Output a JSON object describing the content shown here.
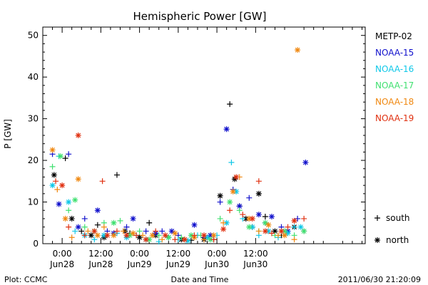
{
  "chart_data": {
    "type": "scatter",
    "title": "Hemispheric Power [GW]",
    "xlabel": "Date and Time",
    "ylabel": "P [GW]",
    "ylim": [
      0,
      52
    ],
    "xlim": [
      -6,
      94
    ],
    "x_unit": "hours from 2011-06-28 00:00 UT",
    "yticks": [
      0,
      10,
      20,
      30,
      40,
      50
    ],
    "xticks": [
      {
        "x": 0,
        "time": "0:00",
        "date": "Jun28"
      },
      {
        "x": 12,
        "time": "12:00",
        "date": "Jun28"
      },
      {
        "x": 24,
        "time": "0:00",
        "date": "Jun29"
      },
      {
        "x": 36,
        "time": "12:00",
        "date": "Jun29"
      },
      {
        "x": 48,
        "time": "0:00",
        "date": "Jun30"
      },
      {
        "x": 60,
        "time": "12:00",
        "date": "Jun30"
      }
    ],
    "legend_position": "right",
    "series": [
      {
        "name": "METP-02",
        "color": "#000000",
        "values": [
          [
            -2.5,
            16.5
          ],
          [
            1,
            20.5
          ],
          [
            3,
            6
          ],
          [
            6,
            3
          ],
          [
            9,
            2
          ],
          [
            11,
            4.5
          ],
          [
            13,
            1.5
          ],
          [
            17,
            16.5
          ],
          [
            19.5,
            3
          ],
          [
            21,
            2.5
          ],
          [
            24,
            1.5
          ],
          [
            27,
            5
          ],
          [
            29,
            2
          ],
          [
            33,
            1.5
          ],
          [
            37,
            1
          ],
          [
            40,
            0.8
          ],
          [
            44,
            1
          ],
          [
            47,
            1
          ],
          [
            49,
            11.5
          ],
          [
            52,
            33.5
          ],
          [
            53.5,
            15.5
          ],
          [
            55,
            9
          ],
          [
            57,
            6
          ],
          [
            59,
            4
          ],
          [
            61,
            12
          ],
          [
            63,
            6.5
          ],
          [
            66,
            3
          ],
          [
            68,
            2
          ],
          [
            72,
            4
          ],
          [
            75,
            3
          ]
        ]
      },
      {
        "name": "NOAA-15",
        "color": "#1010cc",
        "values": [
          [
            -3,
            21.5
          ],
          [
            -1,
            9.5
          ],
          [
            2,
            21.5
          ],
          [
            5,
            4
          ],
          [
            7,
            6
          ],
          [
            11,
            8
          ],
          [
            14,
            3
          ],
          [
            16,
            2.5
          ],
          [
            20,
            4
          ],
          [
            22,
            6
          ],
          [
            26,
            3
          ],
          [
            29,
            2.5
          ],
          [
            31,
            3
          ],
          [
            34,
            3
          ],
          [
            36,
            2
          ],
          [
            41,
            4.5
          ],
          [
            44,
            1.5
          ],
          [
            46,
            2
          ],
          [
            49,
            10
          ],
          [
            51,
            27.5
          ],
          [
            53,
            13
          ],
          [
            55,
            9
          ],
          [
            58,
            11
          ],
          [
            61,
            7
          ],
          [
            63,
            5
          ],
          [
            65,
            6.5
          ],
          [
            68,
            4
          ],
          [
            70,
            3
          ],
          [
            73,
            6
          ],
          [
            75.5,
            19.5
          ]
        ]
      },
      {
        "name": "NOAA-16",
        "color": "#10c8e8",
        "values": [
          [
            -3,
            14
          ],
          [
            -1,
            21
          ],
          [
            2,
            10
          ],
          [
            4,
            3
          ],
          [
            7,
            2
          ],
          [
            10,
            1
          ],
          [
            13,
            2
          ],
          [
            17,
            2.5
          ],
          [
            20,
            1.5
          ],
          [
            23,
            2
          ],
          [
            26,
            1
          ],
          [
            30,
            0.5
          ],
          [
            33,
            1.5
          ],
          [
            36,
            1
          ],
          [
            39,
            0.7
          ],
          [
            42,
            2
          ],
          [
            45,
            1.5
          ],
          [
            48,
            2
          ],
          [
            51,
            5
          ],
          [
            52.5,
            19.5
          ],
          [
            54,
            12.5
          ],
          [
            56,
            6
          ],
          [
            59,
            4
          ],
          [
            61,
            2
          ],
          [
            64,
            3
          ],
          [
            67,
            1.5
          ],
          [
            70,
            2.5
          ],
          [
            72,
            4
          ],
          [
            74,
            4
          ]
        ]
      },
      {
        "name": "NOAA-17",
        "color": "#40e070",
        "values": [
          [
            -3,
            18.5
          ],
          [
            -0.5,
            21
          ],
          [
            2,
            8
          ],
          [
            4,
            10.5
          ],
          [
            7,
            4
          ],
          [
            10,
            3
          ],
          [
            13,
            5
          ],
          [
            16,
            5
          ],
          [
            18,
            5.5
          ],
          [
            21,
            2
          ],
          [
            24,
            3
          ],
          [
            27,
            1
          ],
          [
            30,
            2
          ],
          [
            33,
            1.5
          ],
          [
            37,
            1.5
          ],
          [
            40,
            2
          ],
          [
            43,
            2
          ],
          [
            46,
            1
          ],
          [
            49,
            6
          ],
          [
            52,
            10
          ],
          [
            55,
            8
          ],
          [
            58,
            4
          ],
          [
            61,
            3
          ],
          [
            63,
            5
          ],
          [
            66,
            2
          ],
          [
            69,
            3
          ],
          [
            72,
            2
          ],
          [
            75,
            3
          ]
        ]
      },
      {
        "name": "NOAA-18",
        "color": "#f08810",
        "values": [
          [
            -3,
            22.5
          ],
          [
            -1.5,
            13
          ],
          [
            1,
            6
          ],
          [
            3,
            1.5
          ],
          [
            5,
            15.5
          ],
          [
            8,
            3
          ],
          [
            11,
            2
          ],
          [
            13,
            4
          ],
          [
            16,
            2
          ],
          [
            19,
            3
          ],
          [
            22,
            2.5
          ],
          [
            25,
            2
          ],
          [
            28,
            2
          ],
          [
            31,
            1
          ],
          [
            35,
            2.5
          ],
          [
            38,
            1
          ],
          [
            41,
            1.5
          ],
          [
            44,
            1
          ],
          [
            47,
            2
          ],
          [
            50,
            5
          ],
          [
            53,
            12.5
          ],
          [
            55,
            16
          ],
          [
            58,
            6
          ],
          [
            61,
            3
          ],
          [
            64,
            4.5
          ],
          [
            67,
            2
          ],
          [
            69,
            2
          ],
          [
            72,
            1
          ],
          [
            73,
            46.5
          ]
        ]
      },
      {
        "name": "NOAA-19",
        "color": "#e03010",
        "values": [
          [
            -2,
            15
          ],
          [
            0,
            14
          ],
          [
            2,
            4
          ],
          [
            5,
            26
          ],
          [
            7,
            2
          ],
          [
            10,
            3
          ],
          [
            12.5,
            15
          ],
          [
            14,
            2
          ],
          [
            17,
            3
          ],
          [
            20,
            2
          ],
          [
            23,
            2
          ],
          [
            26,
            1
          ],
          [
            29,
            3
          ],
          [
            32,
            2
          ],
          [
            35,
            1
          ],
          [
            38,
            1
          ],
          [
            41,
            2
          ],
          [
            44,
            2
          ],
          [
            47,
            1
          ],
          [
            50,
            3.5
          ],
          [
            52,
            8
          ],
          [
            54,
            16
          ],
          [
            56,
            7
          ],
          [
            59,
            6
          ],
          [
            61,
            15
          ],
          [
            63,
            3
          ],
          [
            65,
            2.5
          ],
          [
            68,
            3
          ],
          [
            70,
            4
          ],
          [
            72,
            5.5
          ],
          [
            75,
            6
          ]
        ]
      }
    ],
    "marker_legend": [
      {
        "symbol": "+",
        "label": "south"
      },
      {
        "symbol": "*",
        "label": "north"
      }
    ]
  },
  "footer": {
    "plot_credit": "Plot: CCMC",
    "timestamp": "2011/06/30 21:20:09"
  }
}
